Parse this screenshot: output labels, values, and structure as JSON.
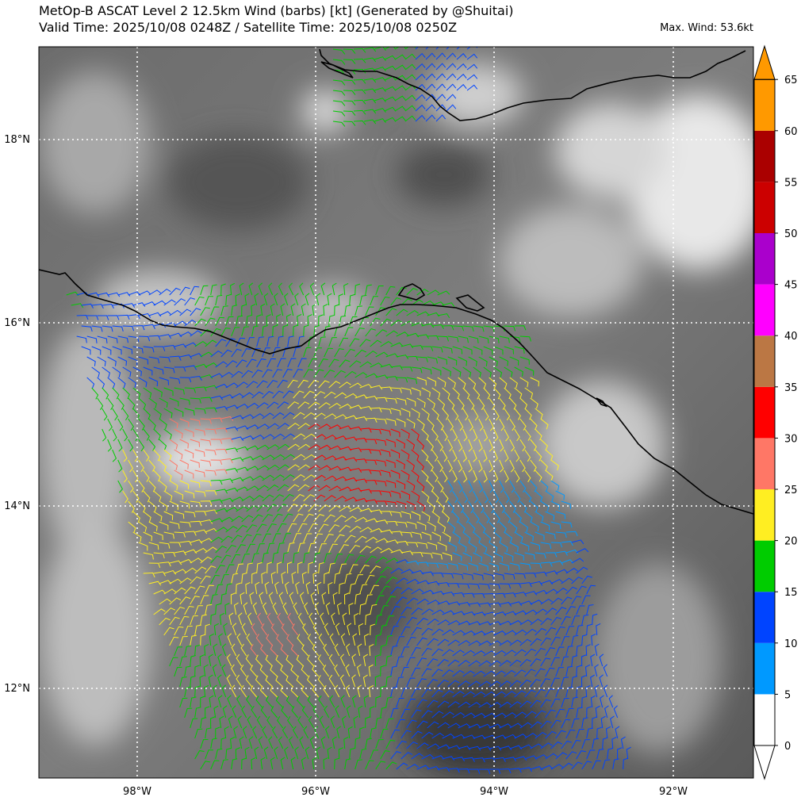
{
  "header": {
    "title_line1": "MetOp-B ASCAT Level 2 12.5km Wind (barbs) [kt] (Generated by @Shuitai)",
    "title_line2": "Valid Time: 2025/10/08 0248Z / Satellite Time: 2025/10/08 0250Z",
    "max_wind": "Max. Wind: 53.6kt"
  },
  "map": {
    "lat_labels": [
      "18°N",
      "16°N",
      "14°N",
      "12°N"
    ],
    "lon_labels": [
      "98°W",
      "96°W",
      "94°W",
      "92°W"
    ],
    "gridlines": "dotted white",
    "background": "infrared satellite imagery (grayscale)"
  },
  "colorbar": {
    "ticks": [
      "0",
      "5",
      "10",
      "15",
      "20",
      "25",
      "30",
      "35",
      "40",
      "45",
      "50",
      "55",
      "60",
      "65"
    ],
    "bins": [
      {
        "from": 0,
        "to": 5,
        "color": "#ffffff"
      },
      {
        "from": 5,
        "to": 10,
        "color": "#0099ff"
      },
      {
        "from": 10,
        "to": 15,
        "color": "#0044ff"
      },
      {
        "from": 15,
        "to": 20,
        "color": "#00cc00"
      },
      {
        "from": 20,
        "to": 25,
        "color": "#ffee22"
      },
      {
        "from": 25,
        "to": 30,
        "color": "#ff7766"
      },
      {
        "from": 30,
        "to": 35,
        "color": "#ff0000"
      },
      {
        "from": 35,
        "to": 40,
        "color": "#bb7744"
      },
      {
        "from": 40,
        "to": 45,
        "color": "#ff00ff"
      },
      {
        "from": 45,
        "to": 50,
        "color": "#aa00cc"
      },
      {
        "from": 50,
        "to": 55,
        "color": "#cc0000"
      },
      {
        "from": 55,
        "to": 60,
        "color": "#aa0000"
      },
      {
        "from": 60,
        "to": 65,
        "color": "#ff9900"
      }
    ],
    "over_color": "#ff9900",
    "under_color": "#ffffff"
  }
}
